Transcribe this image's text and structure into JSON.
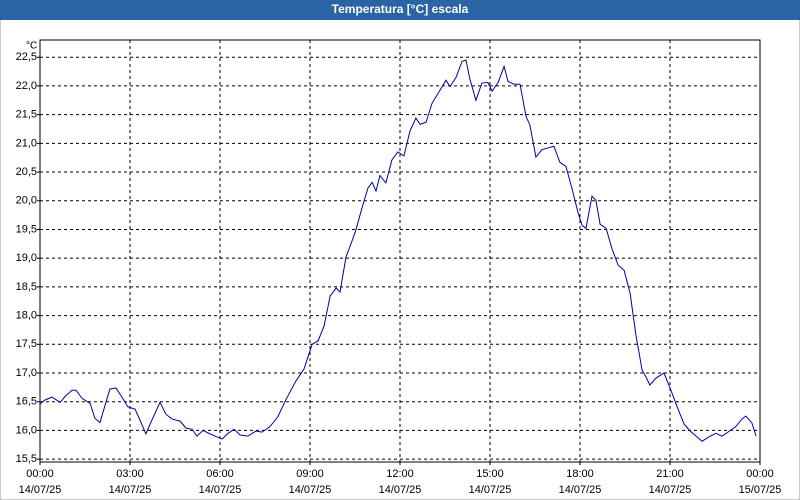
{
  "chart_data": {
    "type": "line",
    "title": "Temperatura [°C] escala",
    "y_unit": "°C",
    "x": [
      0,
      0.17,
      0.4,
      0.67,
      0.87,
      1.07,
      1.2,
      1.4,
      1.67,
      1.83,
      2,
      2.17,
      2.33,
      2.53,
      2.73,
      2.93,
      3.17,
      3.33,
      3.53,
      3.73,
      4,
      4.2,
      4.4,
      4.67,
      4.87,
      5.07,
      5.23,
      5.43,
      5.67,
      5.93,
      6.07,
      6.27,
      6.47,
      6.67,
      6.93,
      7.2,
      7.4,
      7.67,
      7.93,
      8.2,
      8.53,
      8.8,
      9.07,
      9.27,
      9.47,
      9.67,
      9.87,
      10,
      10.2,
      10.4,
      10.53,
      10.73,
      10.93,
      11.07,
      11.2,
      11.33,
      11.53,
      11.73,
      11.93,
      12.13,
      12.33,
      12.53,
      12.67,
      12.87,
      13.07,
      13.33,
      13.53,
      13.67,
      13.87,
      14.07,
      14.2,
      14.33,
      14.53,
      14.73,
      14.93,
      15.07,
      15.27,
      15.47,
      15.6,
      15.8,
      16,
      16.2,
      16.33,
      16.53,
      16.73,
      16.93,
      17.13,
      17.33,
      17.53,
      17.73,
      17.93,
      18.07,
      18.2,
      18.4,
      18.53,
      18.67,
      18.87,
      19.07,
      19.27,
      19.47,
      19.67,
      19.87,
      20.07,
      20.2,
      20.33,
      20.53,
      20.8,
      21,
      21.27,
      21.47,
      21.67,
      21.87,
      22.07,
      22.27,
      22.53,
      22.73,
      22.93,
      23.2,
      23.4,
      23.53,
      23.73,
      23.87
    ],
    "values": [
      16.46,
      16.53,
      16.58,
      16.49,
      16.61,
      16.7,
      16.7,
      16.56,
      16.47,
      16.21,
      16.14,
      16.44,
      16.72,
      16.74,
      16.58,
      16.41,
      16.37,
      16.18,
      15.94,
      16.18,
      16.49,
      16.28,
      16.2,
      16.16,
      16.04,
      16.02,
      15.9,
      16.0,
      15.94,
      15.88,
      15.85,
      15.95,
      16.02,
      15.92,
      15.9,
      15.99,
      15.97,
      16.07,
      16.24,
      16.54,
      16.86,
      17.07,
      17.5,
      17.56,
      17.82,
      18.34,
      18.48,
      18.41,
      19.02,
      19.3,
      19.49,
      19.87,
      20.22,
      20.32,
      20.17,
      20.44,
      20.31,
      20.71,
      20.85,
      20.78,
      21.21,
      21.44,
      21.33,
      21.37,
      21.7,
      21.92,
      22.1,
      21.99,
      22.15,
      22.43,
      22.45,
      22.12,
      21.75,
      22.05,
      22.06,
      21.91,
      22.06,
      22.34,
      22.08,
      22.03,
      22.03,
      21.47,
      21.32,
      20.76,
      20.89,
      20.92,
      20.95,
      20.67,
      20.6,
      20.22,
      19.8,
      19.57,
      19.52,
      20.08,
      20.01,
      19.59,
      19.52,
      19.16,
      18.88,
      18.79,
      18.39,
      17.64,
      17.05,
      16.93,
      16.79,
      16.91,
      17.0,
      16.74,
      16.37,
      16.11,
      15.99,
      15.9,
      15.81,
      15.88,
      15.95,
      15.9,
      15.97,
      16.07,
      16.2,
      16.25,
      16.13,
      15.9
    ],
    "color": "#0000a8",
    "grid": true,
    "xlim": [
      0,
      24
    ],
    "xticks": [
      {
        "value": 0,
        "label": "00:00"
      },
      {
        "value": 3,
        "label": "03:00"
      },
      {
        "value": 6,
        "label": "06:00"
      },
      {
        "value": 9,
        "label": "09:00"
      },
      {
        "value": 12,
        "label": "12:00"
      },
      {
        "value": 15,
        "label": "15:00"
      },
      {
        "value": 18,
        "label": "18:00"
      },
      {
        "value": 21,
        "label": "21:00"
      },
      {
        "value": 24,
        "label": "00:00"
      }
    ],
    "xtick_dates": [
      "14/07/25",
      "14/07/25",
      "14/07/25",
      "14/07/25",
      "14/07/25",
      "14/07/25",
      "14/07/25",
      "14/07/25",
      "15/07/25"
    ],
    "ylim": [
      15.45,
      22.8
    ],
    "yticks": [
      {
        "value": 15.5,
        "label": "15,5"
      },
      {
        "value": 16,
        "label": "16,0"
      },
      {
        "value": 16.5,
        "label": "16,5"
      },
      {
        "value": 17,
        "label": "17,0"
      },
      {
        "value": 17.5,
        "label": "17,5"
      },
      {
        "value": 18,
        "label": "18,0"
      },
      {
        "value": 18.5,
        "label": "18,5"
      },
      {
        "value": 19,
        "label": "19,0"
      },
      {
        "value": 19.5,
        "label": "19,5"
      },
      {
        "value": 20,
        "label": "20,0"
      },
      {
        "value": 20.5,
        "label": "20,5"
      },
      {
        "value": 21,
        "label": "21,0"
      },
      {
        "value": 21.5,
        "label": "21,5"
      },
      {
        "value": 22,
        "label": "22,0"
      },
      {
        "value": 22.5,
        "label": "22,5"
      }
    ]
  }
}
